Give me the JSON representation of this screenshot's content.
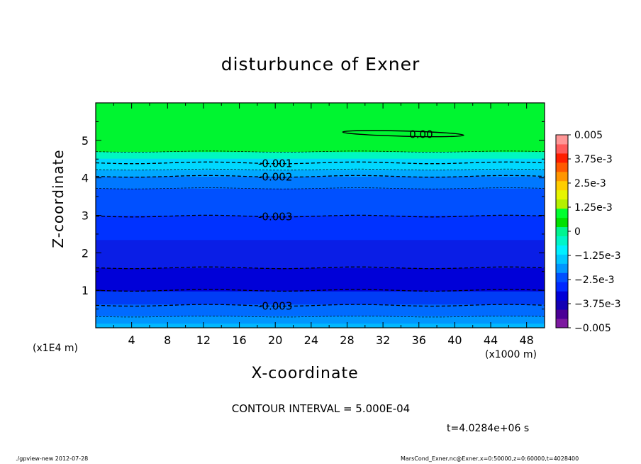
{
  "chart_data": {
    "type": "contour",
    "title": "disturbunce of Exner",
    "xlabel": "X-coordinate",
    "ylabel": "Z-coordinate",
    "x_unit_label": "(x1000 m)",
    "y_unit_label": "(x1E4 m)",
    "xlim": [
      0,
      50
    ],
    "ylim": [
      0,
      6
    ],
    "x_ticks": [
      4,
      8,
      12,
      16,
      20,
      24,
      28,
      32,
      36,
      40,
      44,
      48
    ],
    "y_ticks": [
      1,
      2,
      3,
      4,
      5
    ],
    "contour_interval_text": "CONTOUR INTERVAL = 5.000E-04",
    "time_text": "t=4.0284e+06 s",
    "bands": [
      {
        "z0": 0.0,
        "z1": 0.12,
        "color": "#00b8ff"
      },
      {
        "z0": 0.12,
        "z1": 0.32,
        "color": "#0096ff"
      },
      {
        "z0": 0.32,
        "z1": 0.63,
        "color": "#006bff"
      },
      {
        "z0": 0.63,
        "z1": 0.98,
        "color": "#003cf5"
      },
      {
        "z0": 0.98,
        "z1": 1.6,
        "color": "#0000d8"
      },
      {
        "z0": 1.6,
        "z1": 2.35,
        "color": "#0a1ee6"
      },
      {
        "z0": 2.35,
        "z1": 3.0,
        "color": "#0032ff"
      },
      {
        "z0": 3.0,
        "z1": 3.72,
        "color": "#0050ff"
      },
      {
        "z0": 3.72,
        "z1": 4.04,
        "color": "#0078ff"
      },
      {
        "z0": 4.04,
        "z1": 4.22,
        "color": "#00a8ff"
      },
      {
        "z0": 4.22,
        "z1": 4.52,
        "color": "#00d8ff"
      },
      {
        "z0": 4.52,
        "z1": 4.7,
        "color": "#00f7c0"
      },
      {
        "z0": 4.7,
        "z1": 6.0,
        "color": "#00f530"
      }
    ],
    "contour_lines": [
      {
        "z": 0.3,
        "style": "thin"
      },
      {
        "z": 0.6,
        "style": "dash",
        "label": "-0.003",
        "label_x": 20
      },
      {
        "z": 1.0,
        "style": "dash"
      },
      {
        "z": 1.6,
        "style": "dash"
      },
      {
        "z": 2.98,
        "style": "dash",
        "label": "-0.003",
        "label_x": 20
      },
      {
        "z": 3.72,
        "style": "thin"
      },
      {
        "z": 4.04,
        "style": "dash",
        "label": "-0.002",
        "label_x": 20
      },
      {
        "z": 4.22,
        "style": "thin"
      },
      {
        "z": 4.4,
        "style": "dash",
        "label": "-0.001",
        "label_x": 20
      },
      {
        "z": 4.7,
        "style": "thin"
      }
    ],
    "zero_contour": {
      "label": "0.00",
      "x0": 27.5,
      "x1": 41,
      "z_center": 5.18,
      "half_height": 0.07
    },
    "colorbar": {
      "colors": [
        "#7d1aa0",
        "#4b0096",
        "#1400b4",
        "#0000d8",
        "#0028ff",
        "#0050ff",
        "#0096ff",
        "#00c8ff",
        "#00f0ff",
        "#00f5c8",
        "#00f590",
        "#00e100",
        "#00ff30",
        "#b4f000",
        "#e6f500",
        "#ffcd00",
        "#ff9600",
        "#ff5a00",
        "#ff1e00",
        "#ff5a5a",
        "#ff9696"
      ],
      "labels": [
        "0.005",
        "3.75e-3",
        "2.5e-3",
        "1.25e-3",
        "0",
        "−1.25e-3",
        "−2.5e-3",
        "−3.75e-3",
        "−0.005"
      ]
    }
  },
  "footer": {
    "left": "./gpview-new  2012-07-28",
    "right": "MarsCond_Exner.nc@Exner,x=0:50000,z=0:60000,t=4028400"
  }
}
